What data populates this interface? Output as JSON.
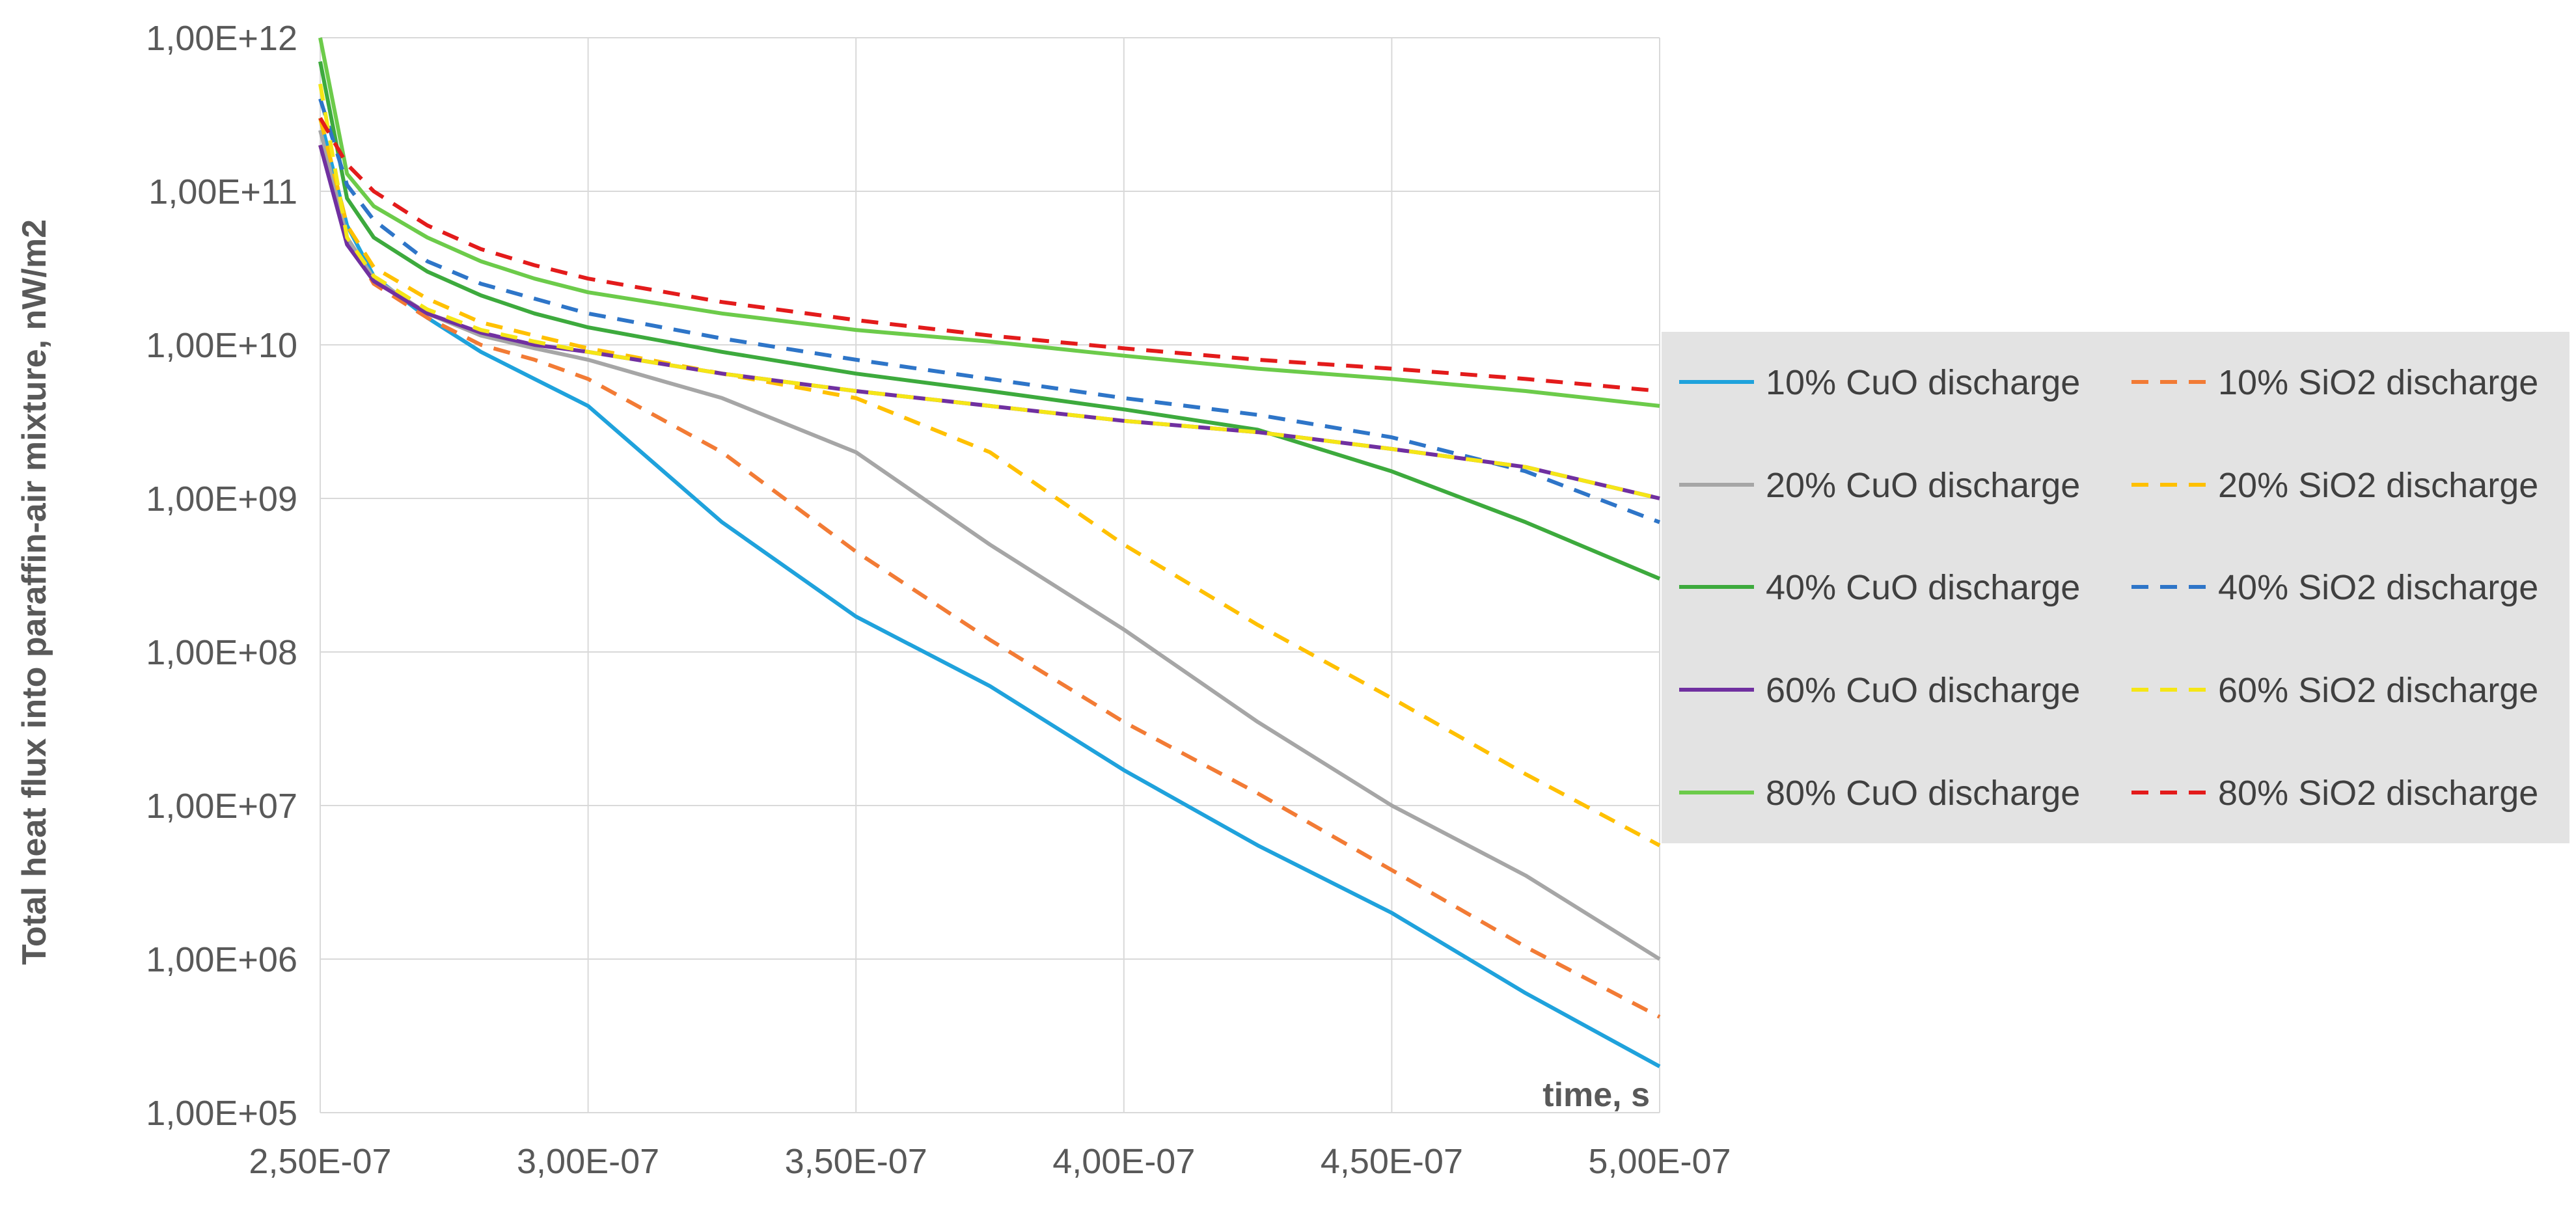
{
  "chart_data": {
    "type": "line",
    "title": "",
    "xlabel": "time, s",
    "ylabel": "Total heat flux  into paraffin-air mixture, nW/m2",
    "x_scale": "linear",
    "y_scale": "log",
    "xlim": [
      2.5e-07,
      5e-07
    ],
    "ylim": [
      100000.0,
      1000000000000.0
    ],
    "x_ticks": [
      {
        "value": 2.5e-07,
        "label": "2,50E-07"
      },
      {
        "value": 3e-07,
        "label": "3,00E-07"
      },
      {
        "value": 3.5e-07,
        "label": "3,50E-07"
      },
      {
        "value": 4e-07,
        "label": "4,00E-07"
      },
      {
        "value": 4.5e-07,
        "label": "4,50E-07"
      },
      {
        "value": 5e-07,
        "label": "5,00E-07"
      }
    ],
    "y_ticks": [
      {
        "value": 1000000000000.0,
        "label": "1,00E+12"
      },
      {
        "value": 100000000000.0,
        "label": "1,00E+11"
      },
      {
        "value": 10000000000.0,
        "label": "1,00E+10"
      },
      {
        "value": 1000000000.0,
        "label": "1,00E+09"
      },
      {
        "value": 100000000.0,
        "label": "1,00E+08"
      },
      {
        "value": 10000000.0,
        "label": "1,00E+07"
      },
      {
        "value": 1000000.0,
        "label": "1,00E+06"
      },
      {
        "value": 100000.0,
        "label": "1,00E+05"
      }
    ],
    "grid": true,
    "legend_position": "right",
    "x": [
      2.5e-07,
      2.55e-07,
      2.6e-07,
      2.7e-07,
      2.8e-07,
      2.9e-07,
      3e-07,
      3.25e-07,
      3.5e-07,
      3.75e-07,
      4e-07,
      4.25e-07,
      4.5e-07,
      4.75e-07,
      5e-07
    ],
    "series": [
      {
        "name": "10% CuO discharge",
        "color": "#1FA2DC",
        "dash": "solid",
        "values": [
          300000000000.0,
          60000000000.0,
          28000000000.0,
          15000000000.0,
          9000000000.0,
          6000000000.0,
          4000000000.0,
          700000000.0,
          170000000.0,
          60000000.0,
          17000000.0,
          5500000.0,
          2000000.0,
          600000.0,
          200000.0
        ]
      },
      {
        "name": "10% SiO2 discharge",
        "color": "#F27B35",
        "dash": "dashed",
        "values": [
          200000000000.0,
          50000000000.0,
          25000000000.0,
          15000000000.0,
          10000000000.0,
          8000000000.0,
          6000000000.0,
          2000000000.0,
          450000000.0,
          120000000.0,
          35000000.0,
          12000000.0,
          3800000.0,
          1200000.0,
          420000.0
        ]
      },
      {
        "name": "20% CuO discharge",
        "color": "#A6A6A6",
        "dash": "solid",
        "values": [
          250000000000.0,
          50000000000.0,
          27000000000.0,
          16000000000.0,
          11500000000.0,
          9500000000.0,
          8000000000.0,
          4500000000.0,
          2000000000.0,
          500000000.0,
          140000000.0,
          35000000.0,
          10000000.0,
          3500000.0,
          1000000.0
        ]
      },
      {
        "name": "20% SiO2 discharge",
        "color": "#FFC000",
        "dash": "dashed",
        "values": [
          300000000000.0,
          60000000000.0,
          32000000000.0,
          20000000000.0,
          14000000000.0,
          11500000000.0,
          9500000000.0,
          6500000000.0,
          4500000000.0,
          2000000000.0,
          500000000.0,
          150000000.0,
          50000000.0,
          16000000.0,
          5500000.0
        ]
      },
      {
        "name": "40% CuO discharge",
        "color": "#3DAA3D",
        "dash": "solid",
        "values": [
          700000000000.0,
          90000000000.0,
          50000000000.0,
          30000000000.0,
          21000000000.0,
          16000000000.0,
          13000000000.0,
          9000000000.0,
          6500000000.0,
          5000000000.0,
          3800000000.0,
          2800000000.0,
          1500000000.0,
          700000000.0,
          300000000.0
        ]
      },
      {
        "name": "40% SiO2 discharge",
        "color": "#2E75C8",
        "dash": "dashed",
        "values": [
          400000000000.0,
          110000000000.0,
          65000000000.0,
          35000000000.0,
          25000000000.0,
          20000000000.0,
          16000000000.0,
          11000000000.0,
          8000000000.0,
          6000000000.0,
          4500000000.0,
          3500000000.0,
          2500000000.0,
          1500000000.0,
          700000000.0
        ]
      },
      {
        "name": "60% CuO discharge",
        "color": "#7030A0",
        "dash": "solid",
        "values": [
          200000000000.0,
          45000000000.0,
          26000000000.0,
          16000000000.0,
          12000000000.0,
          10000000000.0,
          9000000000.0,
          6500000000.0,
          5000000000.0,
          4000000000.0,
          3200000000.0,
          2700000000.0,
          2100000000.0,
          1600000000.0,
          1000000000.0
        ]
      },
      {
        "name": "60% SiO2 discharge",
        "color": "#F5E616",
        "dash": "dashed",
        "values": [
          500000000000.0,
          50000000000.0,
          28000000000.0,
          17000000000.0,
          12500000000.0,
          10500000000.0,
          9000000000.0,
          6500000000.0,
          5000000000.0,
          4000000000.0,
          3200000000.0,
          2700000000.0,
          2100000000.0,
          1600000000.0,
          1000000000.0
        ]
      },
      {
        "name": "80% CuO discharge",
        "color": "#6CCB4A",
        "dash": "solid",
        "values": [
          1000000000000.0,
          130000000000.0,
          80000000000.0,
          50000000000.0,
          35000000000.0,
          27000000000.0,
          22000000000.0,
          16000000000.0,
          12500000000.0,
          10500000000.0,
          8500000000.0,
          7000000000.0,
          6000000000.0,
          5000000000.0,
          4000000000.0
        ]
      },
      {
        "name": "80% SiO2 discharge",
        "color": "#E31B1B",
        "dash": "dashed",
        "values": [
          300000000000.0,
          150000000000.0,
          100000000000.0,
          60000000000.0,
          42000000000.0,
          33000000000.0,
          27000000000.0,
          19000000000.0,
          14500000000.0,
          11500000000.0,
          9500000000.0,
          8000000000.0,
          7000000000.0,
          6000000000.0,
          5000000000.0
        ]
      }
    ]
  }
}
